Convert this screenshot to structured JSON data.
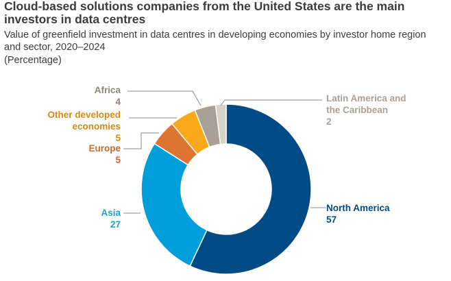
{
  "header": {
    "title_line1": "Cloud-based solutions companies from the United States are the main",
    "title_line2": "investors in data centres",
    "subtitle": "Value of greenfield investment in data centres in developing economies by investor home region and sector, 2020–2024",
    "units": "(Percentage)"
  },
  "chart_data": {
    "type": "pie",
    "donut": true,
    "title": "Cloud-based solutions companies from the United States are the main investors in data centres",
    "subtitle": "Value of greenfield investment in data centres in developing economies by investor home region and sector, 2020–2024",
    "units": "(Percentage)",
    "slices": [
      {
        "name": "North America",
        "value": 57,
        "color": "#004a86"
      },
      {
        "name": "Asia",
        "value": 27,
        "color": "#009edb"
      },
      {
        "name": "Europe",
        "value": 5,
        "color": "#dd7531"
      },
      {
        "name": "Other developed economies",
        "value": 5,
        "color": "#f9a81a"
      },
      {
        "name": "Africa",
        "value": 4,
        "color": "#a9a095"
      },
      {
        "name": "Latin America and the Caribbean",
        "value": 2,
        "color": "#d6d2c4"
      }
    ],
    "labels": {
      "north_america": {
        "line1": "North America",
        "value": "57"
      },
      "asia": {
        "line1": "Asia",
        "value": "27"
      },
      "europe": {
        "line1": "Europe",
        "value": "5"
      },
      "other_developed": {
        "line1": "Other developed",
        "line2": "economies",
        "value": "5"
      },
      "africa": {
        "line1": "Africa",
        "value": "4"
      },
      "latin_america": {
        "line1": "Latin America and",
        "line2": "the Caribbean",
        "value": "2"
      }
    }
  }
}
